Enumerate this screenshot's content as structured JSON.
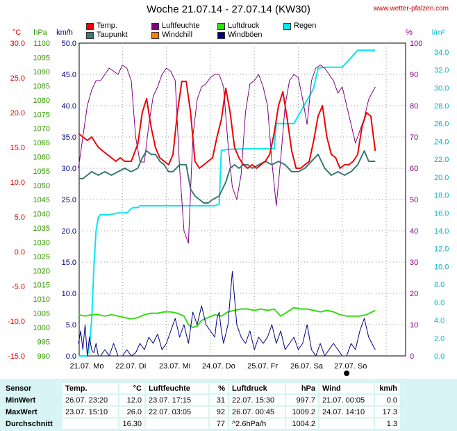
{
  "header": {
    "title": "Woche 21.07.14 - 27.07.14 (KW30)",
    "site": "www.wetter-pfalzen.com"
  },
  "legend": [
    {
      "label": "Temp.",
      "color": "#ee0000"
    },
    {
      "label": "Taupunkt",
      "color": "#3a7a72"
    },
    {
      "label": "Luftfeuchte",
      "color": "#800080"
    },
    {
      "label": "Windchill",
      "color": "#ff8000"
    },
    {
      "label": "Luftdruck",
      "color": "#33dd11"
    },
    {
      "label": "Windböen",
      "color": "#000080"
    },
    {
      "label": "Regen",
      "color": "#00e8f0"
    }
  ],
  "axis_units": {
    "temp": "°C",
    "pressure": "hPa",
    "wind": "km/h",
    "humidity": "%",
    "rain": "l/m²"
  },
  "chart_data": {
    "type": "line",
    "x_ticks": [
      "21.07. Mo",
      "22.07. Di",
      "23.07. Mi",
      "24.07. Do",
      "25.07. Fr",
      "26.07. Sa",
      "27.07. So"
    ],
    "axes": {
      "temp": {
        "unit": "°C",
        "range": [
          -15,
          30
        ],
        "ticks": [
          "30.0",
          "25.0",
          "20.0",
          "15.0",
          "10.0",
          "5.0",
          "0.0",
          "-5.0",
          "-10.0",
          "-15.0"
        ],
        "color": "#ee0000"
      },
      "pressure": {
        "unit": "hPa",
        "range": [
          990,
          1100
        ],
        "ticks": [
          "1100",
          "1095",
          "1090",
          "1085",
          "1080",
          "1075",
          "1070",
          "1065",
          "1060",
          "1055",
          "1050",
          "1045",
          "1040",
          "1035",
          "1030",
          "1025",
          "1020",
          "1015",
          "1010",
          "1005",
          "1000",
          "995",
          "990"
        ],
        "color": "#339900"
      },
      "wind": {
        "unit": "km/h",
        "range": [
          0,
          50
        ],
        "ticks": [
          "50.0",
          "45.0",
          "40.0",
          "35.0",
          "30.0",
          "25.0",
          "20.0",
          "15.0",
          "10.0",
          "5.0",
          "0.0"
        ],
        "color": "#000080"
      },
      "humidity": {
        "unit": "%",
        "range": [
          0,
          100
        ],
        "ticks": [
          "100",
          "90",
          "80",
          "70",
          "60",
          "50",
          "40",
          "30",
          "20",
          "10",
          "0"
        ],
        "color": "#800080"
      },
      "rain": {
        "unit": "l/m²",
        "range": [
          0,
          35
        ],
        "ticks": [
          "34.0",
          "32.0",
          "30.0",
          "28.0",
          "26.0",
          "24.0",
          "22.0",
          "20.0",
          "18.0",
          "16.0",
          "14.0",
          "12.0",
          "10.0",
          "8.0",
          "6.0",
          "4.0",
          "2.0",
          "0.0"
        ],
        "color": "#00b8c8"
      }
    },
    "series": [
      {
        "name": "Temp.",
        "axis": "temp",
        "color": "#ee0000",
        "x": [
          0,
          0.1,
          0.2,
          0.3,
          0.45,
          0.55,
          0.65,
          0.75,
          0.85,
          0.95,
          1.05,
          1.2,
          1.35,
          1.45,
          1.55,
          1.65,
          1.75,
          1.85,
          1.95,
          2.05,
          2.15,
          2.25,
          2.35,
          2.45,
          2.55,
          2.65,
          2.75,
          2.85,
          2.95,
          3.05,
          3.15,
          3.25,
          3.35,
          3.45,
          3.55,
          3.65,
          3.75,
          3.85,
          3.95,
          4.05,
          4.15,
          4.25,
          4.35,
          4.45,
          4.55,
          4.65,
          4.75,
          4.85,
          4.95,
          5.05,
          5.15,
          5.25,
          5.35,
          5.45,
          5.55,
          5.65,
          5.75,
          5.85,
          5.95,
          6.05,
          6.15,
          6.25,
          6.35,
          6.45,
          6.55,
          6.65,
          6.75
        ],
        "y": [
          17,
          16.5,
          16,
          16.5,
          15,
          14.5,
          14,
          13.5,
          13,
          13.5,
          13,
          13,
          15.5,
          20,
          22,
          18,
          15,
          13.5,
          13,
          12.5,
          14,
          20,
          24.5,
          24.5,
          20,
          13,
          12,
          12.5,
          13,
          13.5,
          16.5,
          19,
          23.5,
          20,
          15,
          13.5,
          12.5,
          12,
          12.5,
          12,
          12.5,
          13,
          14,
          17,
          21,
          23,
          19,
          14.5,
          12,
          12,
          12.5,
          13,
          16,
          19.5,
          21,
          16.5,
          14,
          13.5,
          12,
          12.5,
          12.5,
          13,
          14,
          18,
          20,
          19.5,
          14.5
        ]
      },
      {
        "name": "Taupunkt",
        "axis": "temp",
        "color": "#3a7a72",
        "x": [
          0,
          0.1,
          0.2,
          0.3,
          0.45,
          0.6,
          0.75,
          0.9,
          1.05,
          1.2,
          1.35,
          1.45,
          1.55,
          1.65,
          1.75,
          1.85,
          1.95,
          2.05,
          2.15,
          2.3,
          2.45,
          2.55,
          2.65,
          2.75,
          2.85,
          2.95,
          3.05,
          3.2,
          3.35,
          3.45,
          3.55,
          3.65,
          3.75,
          3.85,
          3.95,
          4.1,
          4.25,
          4.4,
          4.55,
          4.7,
          4.85,
          5.0,
          5.15,
          5.3,
          5.45,
          5.6,
          5.75,
          5.9,
          6.05,
          6.2,
          6.35,
          6.5,
          6.6,
          6.75
        ],
        "y": [
          10.5,
          10.5,
          11,
          11.5,
          11,
          11.5,
          11,
          11.5,
          12,
          11.5,
          12,
          13.5,
          14.5,
          14,
          14,
          13,
          12.5,
          11.5,
          11.5,
          12.5,
          12.5,
          9,
          8,
          7.5,
          7,
          7,
          7.5,
          8,
          10,
          12,
          12.5,
          12,
          12.5,
          12.5,
          12,
          12.5,
          13,
          12.5,
          13,
          12.5,
          11.5,
          11.5,
          12,
          13,
          14,
          12,
          11,
          11.5,
          11,
          11.5,
          12.5,
          14.5,
          13,
          13
        ]
      },
      {
        "name": "Luftfeuchte",
        "axis": "humidity",
        "color": "#800080",
        "x": [
          0,
          0.1,
          0.2,
          0.3,
          0.4,
          0.5,
          0.6,
          0.7,
          0.8,
          0.9,
          1.0,
          1.1,
          1.2,
          1.3,
          1.4,
          1.5,
          1.6,
          1.7,
          1.8,
          1.9,
          2.0,
          2.1,
          2.2,
          2.3,
          2.4,
          2.5,
          2.6,
          2.7,
          2.8,
          2.9,
          3.0,
          3.1,
          3.2,
          3.3,
          3.4,
          3.5,
          3.6,
          3.7,
          3.8,
          3.9,
          4.0,
          4.1,
          4.2,
          4.3,
          4.4,
          4.5,
          4.6,
          4.7,
          4.8,
          4.9,
          5.0,
          5.1,
          5.2,
          5.3,
          5.4,
          5.5,
          5.6,
          5.7,
          5.8,
          5.9,
          6.0,
          6.1,
          6.2,
          6.3,
          6.4,
          6.5,
          6.6,
          6.75
        ],
        "y": [
          60,
          70,
          80,
          85,
          88,
          88,
          90,
          92,
          91,
          90,
          93,
          92,
          88,
          70,
          62,
          62,
          74,
          83,
          86,
          90,
          92,
          91,
          88,
          60,
          40,
          36,
          70,
          82,
          86,
          87,
          89,
          90,
          90,
          86,
          68,
          54,
          50,
          58,
          78,
          87,
          88,
          90,
          86,
          80,
          62,
          48,
          63,
          80,
          88,
          90,
          89,
          82,
          74,
          88,
          92,
          93,
          92,
          90,
          88,
          84,
          86,
          80,
          74,
          68,
          72,
          76,
          82,
          86
        ]
      },
      {
        "name": "Luftdruck",
        "axis": "pressure",
        "color": "#33dd11",
        "x": [
          0,
          0.15,
          0.3,
          0.45,
          0.6,
          0.75,
          0.9,
          1.05,
          1.2,
          1.35,
          1.5,
          1.65,
          1.8,
          1.95,
          2.1,
          2.25,
          2.4,
          2.5,
          2.6,
          2.7,
          2.8,
          2.95,
          3.1,
          3.25,
          3.4,
          3.55,
          3.7,
          3.85,
          4.0,
          4.15,
          4.3,
          4.45,
          4.6,
          4.75,
          4.9,
          5.05,
          5.2,
          5.35,
          5.5,
          5.65,
          5.8,
          5.95,
          6.1,
          6.25,
          6.4,
          6.55,
          6.75
        ],
        "y": [
          1004.5,
          1004,
          1004.5,
          1004.5,
          1004,
          1004.5,
          1004,
          1003.5,
          1003,
          1003.5,
          1004.5,
          1005,
          1005,
          1005.5,
          1005.5,
          1005,
          1004,
          1001,
          1000,
          1000.5,
          1002.5,
          1003.5,
          1004.5,
          1004,
          1005.5,
          1006,
          1006.5,
          1006.5,
          1006,
          1006.5,
          1006,
          1006.5,
          1004,
          1005.5,
          1007,
          1006.5,
          1006.5,
          1006,
          1005.5,
          1006,
          1005.5,
          1004.5,
          1004,
          1004,
          1004,
          1004.5,
          1006
        ]
      },
      {
        "name": "Windböen",
        "axis": "wind",
        "color": "#000080",
        "x": [
          0,
          0.05,
          0.1,
          0.15,
          0.2,
          0.25,
          0.3,
          0.35,
          0.4,
          0.45,
          0.5,
          0.6,
          0.7,
          0.8,
          0.9,
          1.0,
          1.1,
          1.2,
          1.3,
          1.4,
          1.5,
          1.6,
          1.7,
          1.8,
          1.9,
          2.0,
          2.1,
          2.2,
          2.3,
          2.4,
          2.5,
          2.6,
          2.7,
          2.8,
          2.9,
          3.0,
          3.1,
          3.15,
          3.2,
          3.25,
          3.3,
          3.4,
          3.5,
          3.6,
          3.7,
          3.8,
          3.9,
          4.0,
          4.1,
          4.2,
          4.3,
          4.4,
          4.5,
          4.6,
          4.7,
          4.8,
          4.9,
          5.0,
          5.1,
          5.2,
          5.3,
          5.4,
          5.5,
          5.6,
          5.7,
          5.8,
          5.9,
          6.0,
          6.1,
          6.2,
          6.3,
          6.4,
          6.5,
          6.6,
          6.75
        ],
        "y": [
          2,
          4,
          1,
          5,
          0,
          3,
          1,
          0.5,
          2,
          0,
          0,
          1,
          0,
          2,
          0,
          0,
          1,
          0,
          0.5,
          2,
          1,
          3,
          2,
          3.5,
          1,
          2,
          4,
          6,
          3,
          5,
          2,
          7,
          5,
          8,
          5,
          4,
          3,
          6,
          7,
          4,
          2,
          5,
          13.5,
          5,
          3,
          2,
          4,
          1,
          3,
          2,
          3,
          5,
          2,
          4,
          1,
          2,
          3,
          1,
          2,
          5,
          1,
          0,
          2,
          0,
          1,
          2,
          1,
          0,
          0,
          2,
          1,
          4,
          6,
          3,
          1
        ]
      },
      {
        "name": "Regen",
        "axis": "rain",
        "color": "#00e8f0",
        "x": [
          0,
          0.2,
          0.25,
          0.3,
          0.35,
          0.4,
          0.45,
          0.5,
          0.7,
          0.9,
          1.1,
          1.2,
          1.25,
          1.35,
          1.4,
          1.5,
          2.0,
          2.5,
          3.1,
          3.2,
          3.25,
          3.3,
          3.35,
          4.0,
          4.45,
          4.5,
          4.9,
          5.3,
          5.35,
          5.45,
          5.6,
          6.0,
          6.35,
          6.5,
          6.75
        ],
        "y": [
          0,
          0,
          1,
          4,
          10,
          14,
          15.5,
          15.8,
          15.8,
          16,
          16,
          16.5,
          16.6,
          16.6,
          16.8,
          16.8,
          16.8,
          16.8,
          16.8,
          17,
          23,
          23,
          23.1,
          23.2,
          23.2,
          26,
          26,
          29.5,
          30,
          32.2,
          32.3,
          32.3,
          34.2,
          34.2,
          34.2
        ]
      }
    ]
  },
  "stats": {
    "headers": {
      "sensor": "Sensor",
      "temp": "Temp.",
      "temp_unit": "°C",
      "hum": "Luftfeuchte",
      "hum_unit": "%",
      "press": "Luftdruck",
      "press_unit": "hPa",
      "wind": "Wind",
      "wind_unit": "km/h"
    },
    "rows": [
      {
        "label": "MinWert",
        "temp_time": "26.07.  23:20",
        "temp_val": "12.0",
        "hum_time": "23.07.  17:15",
        "hum_val": "31",
        "press_time": "22.07.  15:30",
        "press_val": "997.7",
        "wind_time": "21.07.  00:05",
        "wind_val": "0.0"
      },
      {
        "label": "MaxWert",
        "temp_time": "23.07.  15:10",
        "temp_val": "26.0",
        "hum_time": "22.07.  03:05",
        "hum_val": "92",
        "press_time": "26.07.  00:45",
        "press_val": "1009.2",
        "wind_time": "24.07.  14:10",
        "wind_val": "17.3"
      },
      {
        "label": "Durchschnitt",
        "temp_time": "",
        "temp_val": "16.30",
        "hum_time": "",
        "hum_val": "77",
        "press_time": "^2.6hPa/h",
        "press_val": "1004.2",
        "wind_time": "",
        "wind_val": "1.3"
      }
    ]
  }
}
